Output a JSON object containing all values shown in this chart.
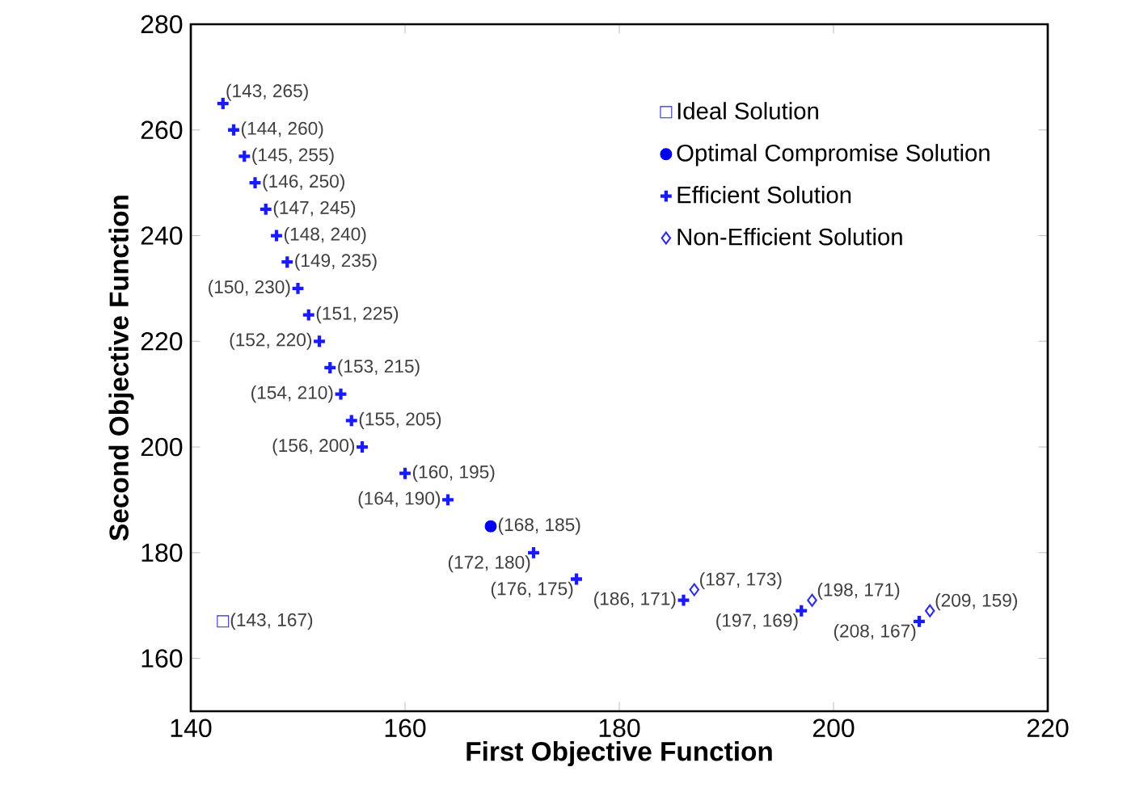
{
  "chart_data": {
    "type": "scatter",
    "xlabel": "First Objective Function",
    "ylabel": "Second Objective Function",
    "xlim": [
      140,
      220
    ],
    "xticks": [
      140,
      160,
      180,
      200,
      220
    ],
    "ylim": [
      150,
      280
    ],
    "yticks": [
      160,
      180,
      200,
      220,
      240,
      260,
      280
    ],
    "grid": false,
    "legend": "top right",
    "series": [
      {
        "name": "Ideal Solution",
        "color": "#2a2ad0",
        "marker": "square",
        "x": [
          143
        ],
        "values": [
          167
        ],
        "value_labels": [
          "(143, 167)"
        ]
      },
      {
        "name": "Optimal Compromise Solution",
        "color": "#0000ee",
        "marker": "circle",
        "x": [
          168
        ],
        "values": [
          185
        ],
        "value_labels": [
          "(168, 185)"
        ]
      },
      {
        "name": "Efficient Solution",
        "color": "#1a1aff",
        "marker": "cross",
        "x": [
          143,
          144,
          145,
          146,
          147,
          148,
          149,
          150,
          151,
          152,
          153,
          154,
          155,
          156,
          160,
          164,
          172,
          176,
          186,
          197,
          208
        ],
        "values": [
          265,
          260,
          255,
          250,
          245,
          240,
          235,
          230,
          225,
          220,
          215,
          210,
          205,
          200,
          195,
          190,
          180,
          175,
          171,
          169,
          167
        ],
        "value_labels": [
          "(143, 265)",
          "(144, 260)",
          "(145, 255)",
          "(146, 250)",
          "(147, 245)",
          "(148, 240)",
          "(149, 235)",
          "(150, 230)",
          "(151, 225)",
          "(152, 220)",
          "(153, 215)",
          "(154, 210)",
          "(155, 205)",
          "(156, 200)",
          "(160, 195)",
          "(164, 190)",
          "(172, 180)",
          "(176, 175)",
          "(186, 171)",
          "(197, 169)",
          "(208, 167)"
        ]
      },
      {
        "name": "Non-Efficient Solution",
        "color": "#3030e0",
        "marker": "diamond",
        "x": [
          187,
          198,
          209
        ],
        "values": [
          173,
          171,
          169
        ],
        "value_labels": [
          "(187, 173)",
          "(198, 171)",
          "(209, 159)"
        ]
      }
    ]
  }
}
